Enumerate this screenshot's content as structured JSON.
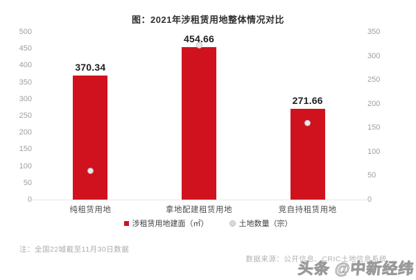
{
  "title": "图：2021年涉租赁用地整体情况对比",
  "note": "注：全国22城截至11月30日数据",
  "source": "数据来源：公开信息、CRIC土地信息系统",
  "watermark": "头条 @中新经纬",
  "colors": {
    "bar": "#d0121f",
    "dot_fill": "#e9e9e9",
    "dot_border": "#bdbdbd",
    "axis_label": "#9e9e9e",
    "title_text": "#2f2f2f"
  },
  "chart_data": {
    "type": "bar",
    "title": "图：2021年涉租赁用地整体情况对比",
    "categories": [
      "纯租赁用地",
      "拿地配建租赁用地",
      "竞自持租赁用地"
    ],
    "series": [
      {
        "name": "涉租赁用地建面（㎡）",
        "type": "bar",
        "axis": "left",
        "values": [
          370.34,
          454.66,
          271.66
        ],
        "data_labels": [
          "370.34",
          "454.66",
          "271.66"
        ],
        "color": "#d0121f"
      },
      {
        "name": "土地数量（宗）",
        "type": "scatter",
        "axis": "right",
        "values": [
          60,
          322,
          160
        ],
        "color": "#d9d9d9"
      }
    ],
    "left_axis": {
      "min": 0,
      "max": 500,
      "ticks": [
        "500",
        "450",
        "400",
        "350",
        "300",
        "250",
        "200",
        "150",
        "100",
        "50",
        "0"
      ]
    },
    "right_axis": {
      "min": 0,
      "max": 350,
      "ticks": [
        "350",
        "300",
        "250",
        "200",
        "150",
        "100",
        "50",
        "0"
      ]
    },
    "legend_position": "bottom-center",
    "grid": false
  }
}
